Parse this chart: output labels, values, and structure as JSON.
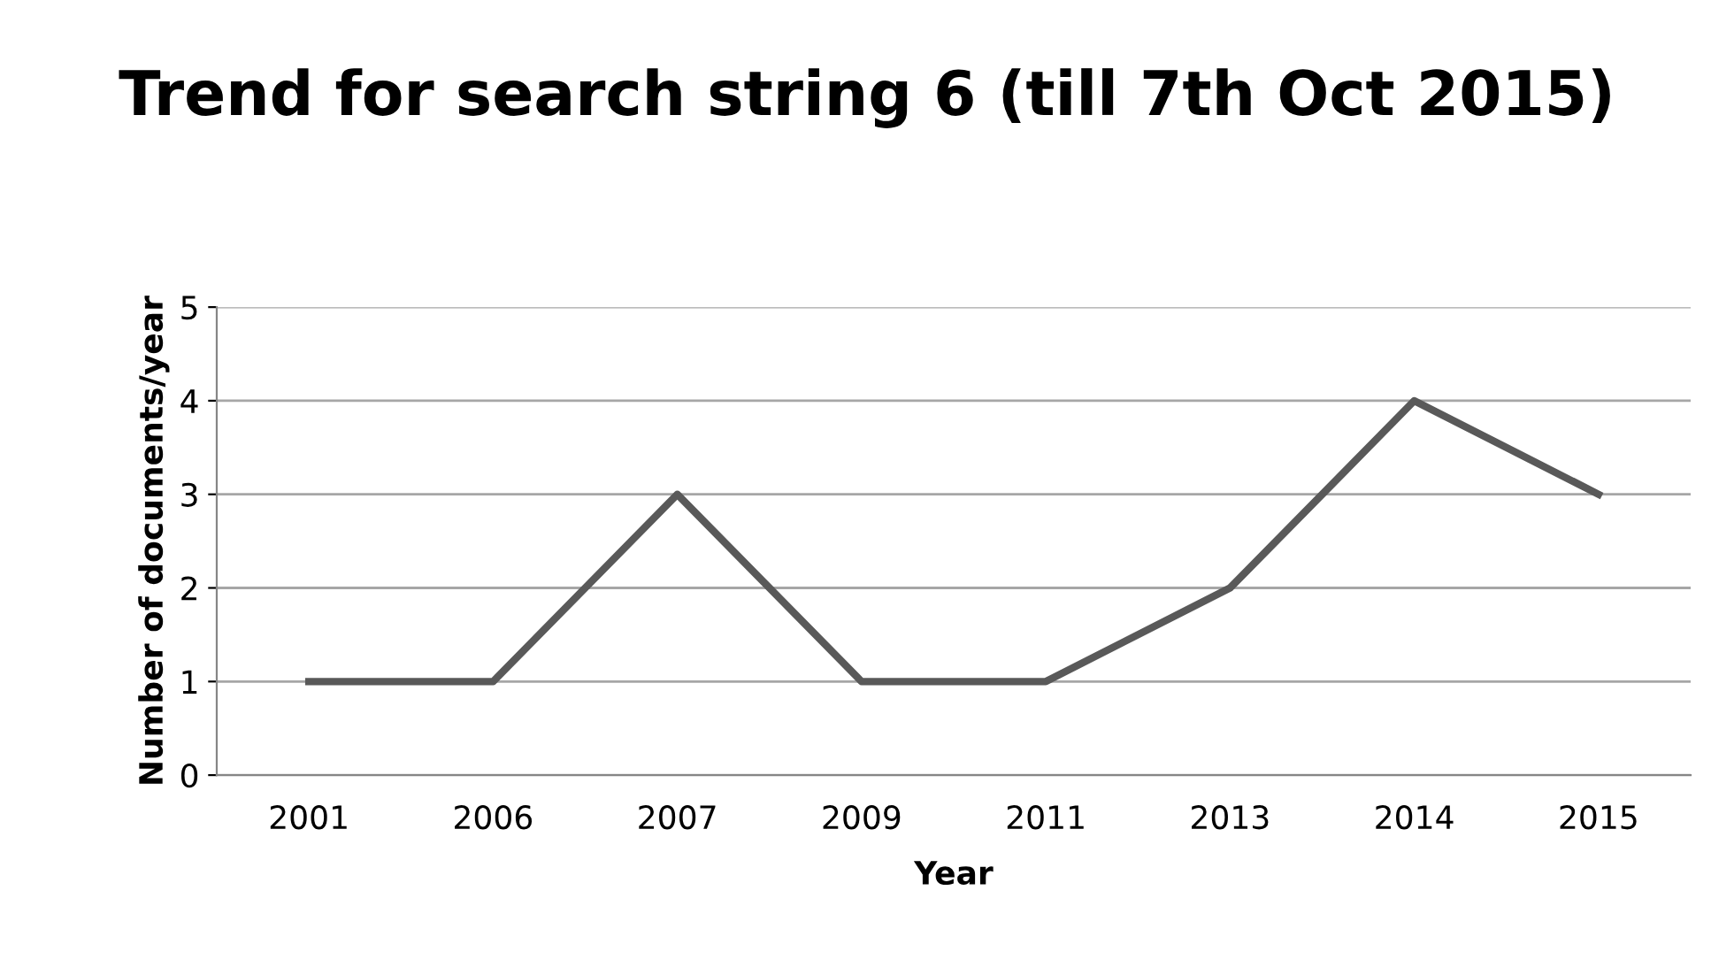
{
  "chart_data": {
    "type": "line",
    "title": "Trend for search string 6 (till 7th Oct 2015)",
    "xlabel": "Year",
    "ylabel": "Number of documents/year",
    "categories": [
      "2001",
      "2006",
      "2007",
      "2009",
      "2011",
      "2013",
      "2014",
      "2015"
    ],
    "series": [
      {
        "color": "#595959",
        "values": [
          1,
          1,
          3,
          1,
          1,
          2,
          4,
          3
        ]
      }
    ],
    "ylim": [
      0,
      5
    ],
    "yticks": [
      0,
      1,
      2,
      3,
      4,
      5
    ],
    "grid": "y",
    "legend": false,
    "marker": "none",
    "line_style": "solid"
  }
}
